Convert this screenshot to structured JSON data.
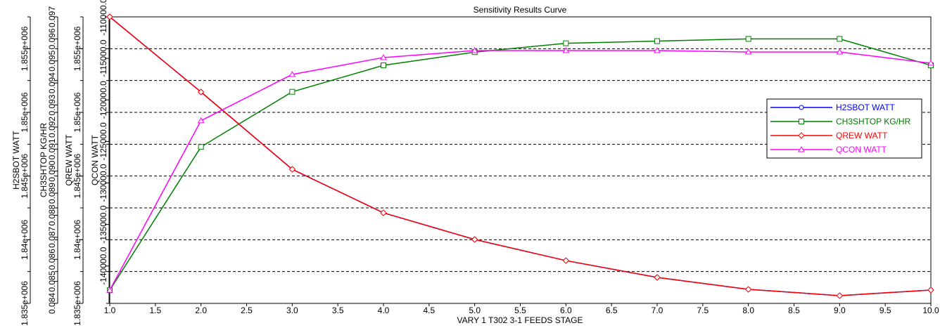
{
  "chart_data": {
    "type": "line",
    "title": "Sensitivity Results Curve",
    "xlabel": "VARY   1 T302 3-1 FEEDS STAGE",
    "x": [
      1,
      2,
      3,
      4,
      5,
      6,
      7,
      8,
      9,
      10
    ],
    "xlim": [
      1,
      10
    ],
    "xticks": [
      "1.0",
      "1.5",
      "2.0",
      "2.5",
      "3.0",
      "3.5",
      "4.0",
      "4.5",
      "5.0",
      "5.5",
      "6.0",
      "6.5",
      "7.0",
      "7.5",
      "8.0",
      "8.5",
      "9.0",
      "9.5",
      "10.0"
    ],
    "grid": true,
    "legend_position": "right",
    "axes": [
      {
        "label": "H2SBOT WATT",
        "ylim": [
          1835000,
          1857500
        ],
        "ticks": [
          1835000,
          1840000,
          1845000,
          1850000,
          1855000
        ],
        "tick_labels": [
          "1.835e+006",
          "1.84e+006",
          "1.845e+006",
          "1.85e+006",
          "1.855e+006"
        ]
      },
      {
        "label": "CH3SHTOP KG/HR",
        "ylim": [
          0.084,
          0.097
        ],
        "ticks": [
          0.084,
          0.085,
          0.086,
          0.087,
          0.088,
          0.089,
          0.09,
          0.091,
          0.092,
          0.093,
          0.094,
          0.095,
          0.096,
          0.097
        ],
        "tick_labels": [
          "0.084",
          "0.085",
          "0.086",
          "0.087",
          "0.088",
          "0.089",
          "0.090",
          "0.091",
          "0.092",
          "0.093",
          "0.094",
          "0.095",
          "0.096",
          "0.097"
        ]
      },
      {
        "label": "QREW WATT",
        "ylim": [
          1835000,
          1857500
        ],
        "ticks": [
          1835000,
          1840000,
          1845000,
          1850000,
          1855000
        ],
        "tick_labels": [
          "1.835e+006",
          "1.84e+006",
          "1.845e+006",
          "1.85e+006",
          "1.855e+006"
        ]
      },
      {
        "label": "QCON WATT",
        "ylim": [
          -144500,
          -110000
        ],
        "ticks": [
          -140000,
          -135000,
          -130000,
          -125000,
          -120000,
          -115000,
          -110000
        ],
        "tick_labels": [
          "-140000.0",
          "-135000.0",
          "-130000.0",
          "-125000.0",
          "-120000.0",
          "-115000.0",
          "-110000.0"
        ]
      }
    ],
    "series": [
      {
        "name": "H2SBOT WATT",
        "axis": 0,
        "color": "#0000ff",
        "marker": "circle",
        "values": [
          1857500,
          1851600,
          1845530,
          1842110,
          1840020,
          1838360,
          1837040,
          1836100,
          1835610,
          1836050
        ]
      },
      {
        "name": "CH3SHTOP KG/HR",
        "axis": 1,
        "color": "#008000",
        "marker": "square",
        "values": [
          0.0846,
          0.0911,
          0.0936,
          0.0948,
          0.0954,
          0.0958,
          0.0959,
          0.096,
          0.096,
          0.0948
        ]
      },
      {
        "name": "QREW WATT",
        "axis": 2,
        "color": "#ff0000",
        "marker": "diamond",
        "values": [
          1857500,
          1851600,
          1845530,
          1842110,
          1840020,
          1838360,
          1837040,
          1836100,
          1835610,
          1836050
        ]
      },
      {
        "name": "QCON WATT",
        "axis": 3,
        "color": "#ff00ff",
        "marker": "triangle",
        "values": [
          -142900,
          -122500,
          -116930,
          -114900,
          -114060,
          -114060,
          -114060,
          -114230,
          -114230,
          -115580
        ]
      }
    ]
  }
}
